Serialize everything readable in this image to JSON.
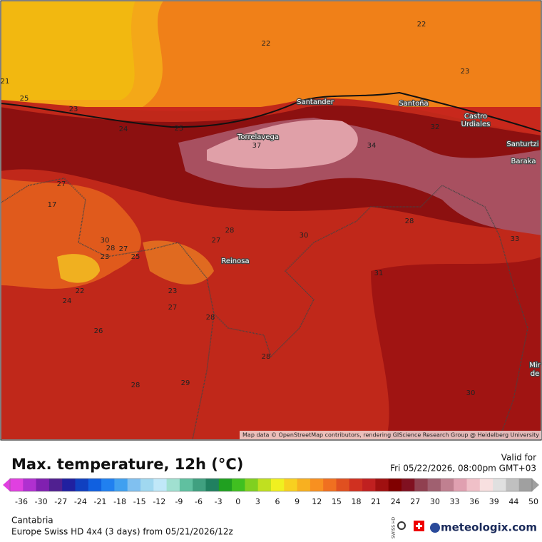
{
  "map": {
    "cities": [
      "Santander",
      "Santoña",
      "Castro",
      "Urdiales",
      "Torrelavega",
      "Santurtzi",
      "Baraka",
      "Reinosa",
      "Mir",
      "de"
    ],
    "contours": [
      22,
      22,
      23,
      21,
      25,
      23,
      24,
      25,
      37,
      34,
      27,
      17,
      33,
      30,
      28,
      27,
      30,
      23,
      25,
      27,
      28,
      31,
      22,
      23,
      24,
      27,
      28,
      26,
      28,
      28,
      29,
      30,
      28,
      32
    ],
    "attribution": "Map data © OpenStreetMap contributors, rendering GIScience Research Group @ Heidelberg University"
  },
  "legend": {
    "title": "Max. temperature, 12h (°C)",
    "valid_label": "Valid for",
    "valid_time": "Fri 05/22/2026, 08:00pm GMT+03",
    "ticks": [
      -36,
      -30,
      -27,
      -24,
      -21,
      -18,
      -15,
      -12,
      -9,
      -6,
      -3,
      0,
      3,
      6,
      9,
      12,
      15,
      18,
      21,
      24,
      27,
      30,
      33,
      36,
      39,
      44,
      50
    ],
    "colors": [
      "#e040e0",
      "#b030d0",
      "#8020b0",
      "#502090",
      "#2020a0",
      "#1040c0",
      "#1060e0",
      "#2080f0",
      "#40a0f0",
      "#80c0f0",
      "#a0d8f0",
      "#c0e8f8",
      "#a0e0d0",
      "#60c0a0",
      "#40a080",
      "#208060",
      "#20a020",
      "#40c020",
      "#80d020",
      "#c0e020",
      "#f0f020",
      "#f8d020",
      "#f8b020",
      "#f89020",
      "#f07020",
      "#e05020",
      "#d03020",
      "#c02020",
      "#a01010",
      "#800000",
      "#801020",
      "#904050",
      "#a06070",
      "#c08090",
      "#e0a0b0",
      "#f0c0c8",
      "#f8e0e0",
      "#e0e0e0",
      "#c0c0c0",
      "#a0a0a0"
    ]
  },
  "footer": {
    "region": "Cantabria",
    "model": "Europe Swiss HD 4x4 (3 days) from 05/21/2026/12z",
    "swiss": "SWISS HD",
    "brand": "meteologix.com"
  }
}
